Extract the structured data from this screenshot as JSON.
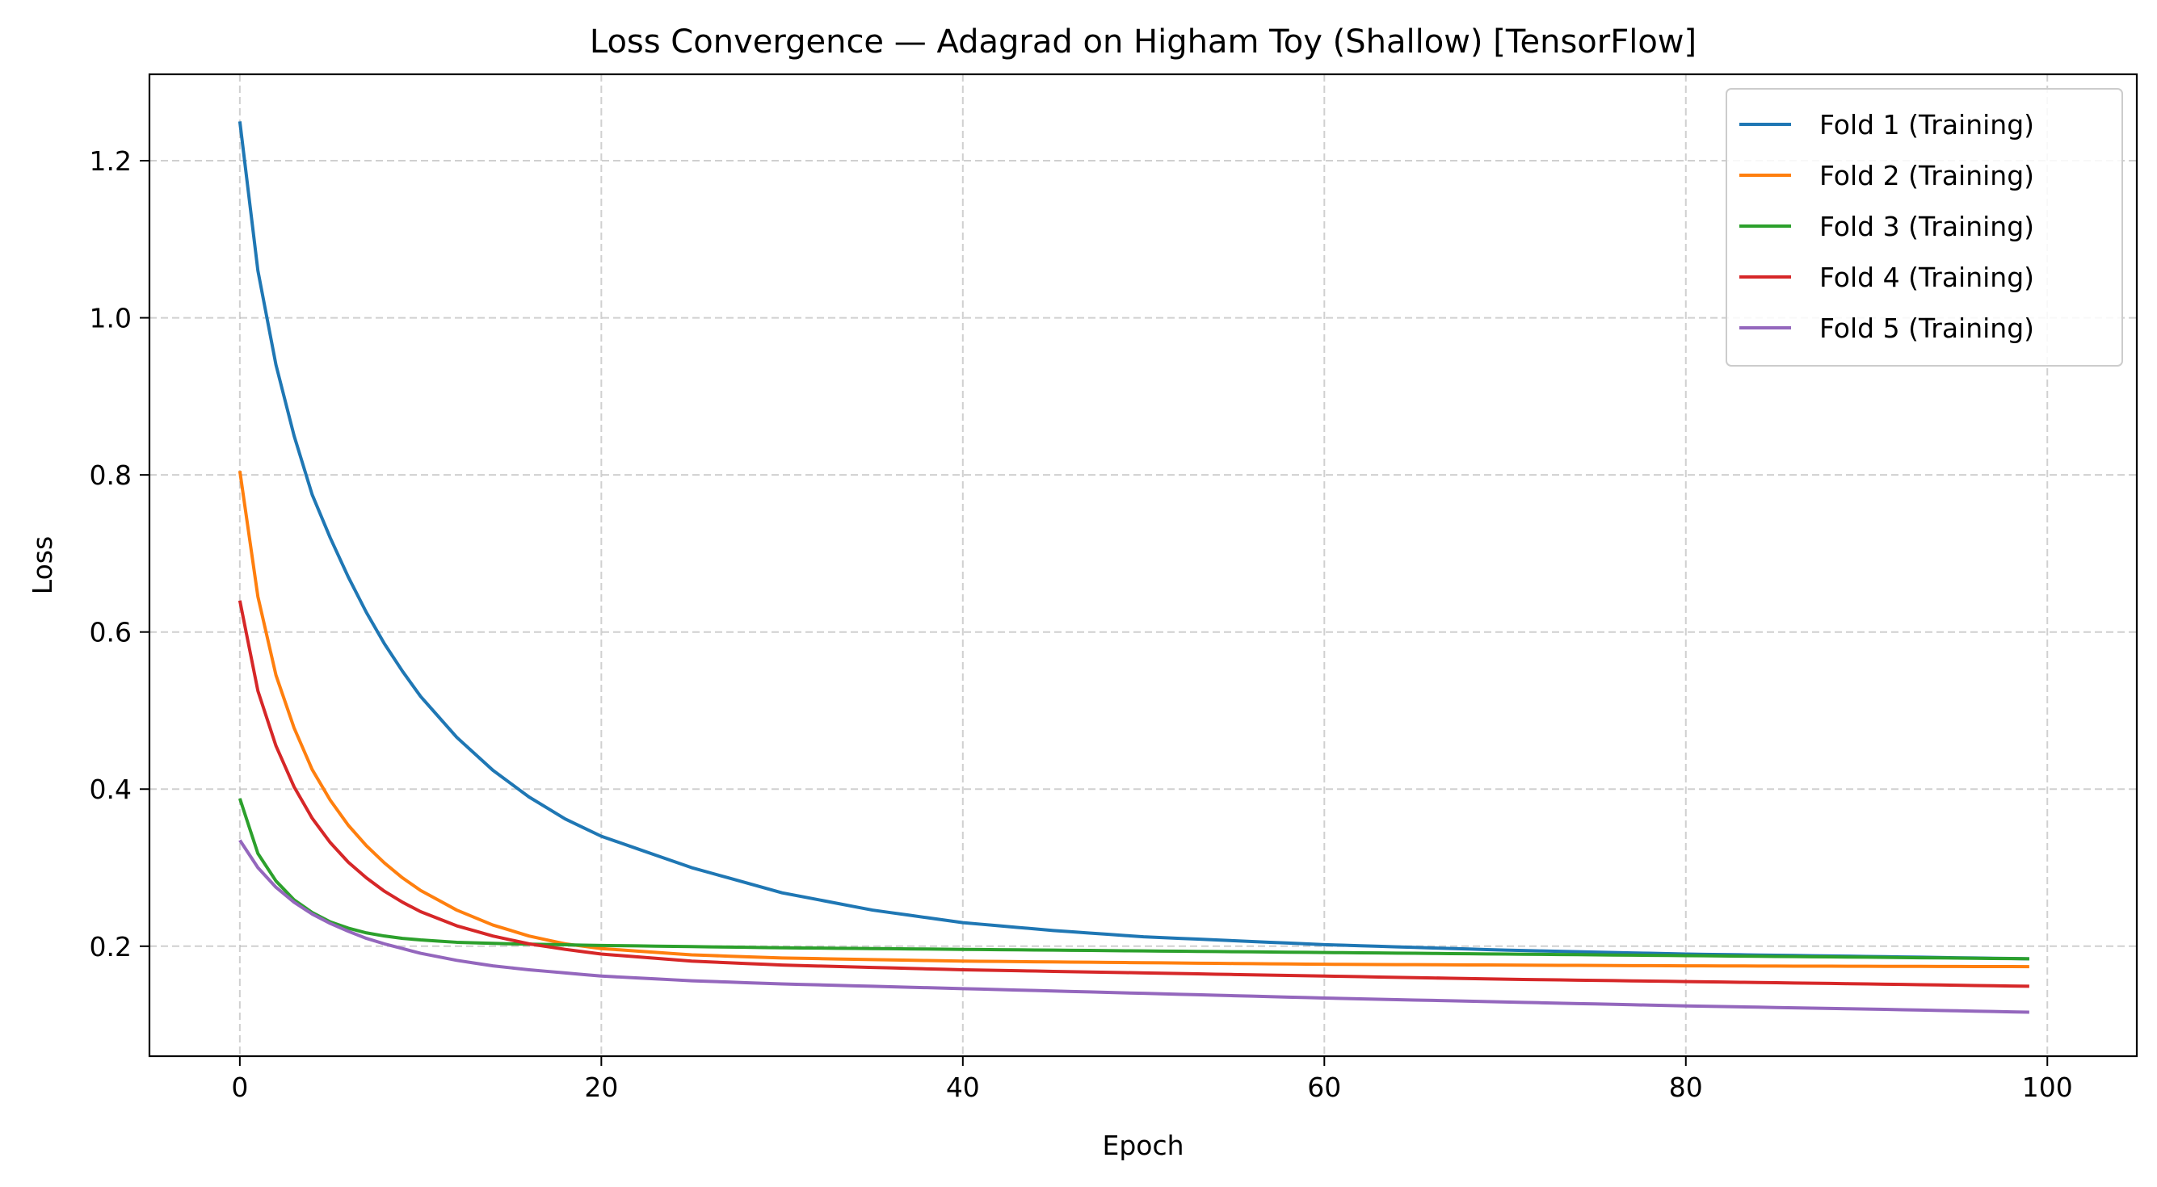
{
  "chart_data": {
    "type": "line",
    "title": "Loss Convergence — Adagrad on Higham Toy (Shallow) [TensorFlow]",
    "xlabel": "Epoch",
    "ylabel": "Loss",
    "xlim": [
      -5,
      104.95
    ],
    "ylim": [
      0.06,
      1.31
    ],
    "x_ticks": [
      0,
      20,
      40,
      60,
      80,
      100
    ],
    "y_ticks": [
      0.2,
      0.4,
      0.6,
      0.8,
      1.0,
      1.2
    ],
    "x_tick_labels": [
      "0",
      "20",
      "40",
      "60",
      "80",
      "100"
    ],
    "y_tick_labels": [
      "0.2",
      "0.4",
      "0.6",
      "0.8",
      "1.0",
      "1.2"
    ],
    "grid": true,
    "legend_position": "top-right",
    "x_range": [
      0,
      99
    ],
    "series": [
      {
        "name": "Fold 1 (Training)",
        "color": "#1f77b4",
        "points": [
          [
            0,
            1.25
          ],
          [
            1,
            1.06
          ],
          [
            2,
            0.94
          ],
          [
            3,
            0.85
          ],
          [
            4,
            0.775
          ],
          [
            5,
            0.72
          ],
          [
            6,
            0.67
          ],
          [
            7,
            0.625
          ],
          [
            8,
            0.585
          ],
          [
            9,
            0.55
          ],
          [
            10,
            0.518
          ],
          [
            12,
            0.466
          ],
          [
            14,
            0.424
          ],
          [
            16,
            0.39
          ],
          [
            18,
            0.362
          ],
          [
            20,
            0.34
          ],
          [
            25,
            0.3
          ],
          [
            30,
            0.268
          ],
          [
            35,
            0.246
          ],
          [
            40,
            0.23
          ],
          [
            45,
            0.22
          ],
          [
            50,
            0.212
          ],
          [
            60,
            0.202
          ],
          [
            70,
            0.195
          ],
          [
            80,
            0.19
          ],
          [
            90,
            0.187
          ],
          [
            99,
            0.184
          ]
        ]
      },
      {
        "name": "Fold 2 (Training)",
        "color": "#ff7f0e",
        "points": [
          [
            0,
            0.805
          ],
          [
            1,
            0.645
          ],
          [
            2,
            0.545
          ],
          [
            3,
            0.478
          ],
          [
            4,
            0.425
          ],
          [
            5,
            0.386
          ],
          [
            6,
            0.354
          ],
          [
            7,
            0.328
          ],
          [
            8,
            0.306
          ],
          [
            9,
            0.287
          ],
          [
            10,
            0.271
          ],
          [
            12,
            0.246
          ],
          [
            14,
            0.227
          ],
          [
            16,
            0.213
          ],
          [
            18,
            0.203
          ],
          [
            20,
            0.197
          ],
          [
            25,
            0.189
          ],
          [
            30,
            0.185
          ],
          [
            40,
            0.181
          ],
          [
            50,
            0.179
          ],
          [
            60,
            0.177
          ],
          [
            70,
            0.176
          ],
          [
            80,
            0.175
          ],
          [
            99,
            0.174
          ]
        ]
      },
      {
        "name": "Fold 3 (Training)",
        "color": "#2ca02c",
        "points": [
          [
            0,
            0.388
          ],
          [
            1,
            0.318
          ],
          [
            2,
            0.283
          ],
          [
            3,
            0.259
          ],
          [
            4,
            0.243
          ],
          [
            5,
            0.231
          ],
          [
            6,
            0.223
          ],
          [
            7,
            0.217
          ],
          [
            8,
            0.213
          ],
          [
            9,
            0.21
          ],
          [
            10,
            0.208
          ],
          [
            12,
            0.205
          ],
          [
            15,
            0.203
          ],
          [
            20,
            0.201
          ],
          [
            30,
            0.198
          ],
          [
            40,
            0.196
          ],
          [
            50,
            0.194
          ],
          [
            60,
            0.192
          ],
          [
            70,
            0.19
          ],
          [
            80,
            0.188
          ],
          [
            90,
            0.186
          ],
          [
            99,
            0.184
          ]
        ]
      },
      {
        "name": "Fold 4 (Training)",
        "color": "#d62728",
        "points": [
          [
            0,
            0.64
          ],
          [
            1,
            0.525
          ],
          [
            2,
            0.455
          ],
          [
            3,
            0.403
          ],
          [
            4,
            0.363
          ],
          [
            5,
            0.332
          ],
          [
            6,
            0.307
          ],
          [
            7,
            0.287
          ],
          [
            8,
            0.27
          ],
          [
            9,
            0.256
          ],
          [
            10,
            0.244
          ],
          [
            12,
            0.226
          ],
          [
            14,
            0.213
          ],
          [
            16,
            0.203
          ],
          [
            18,
            0.196
          ],
          [
            20,
            0.19
          ],
          [
            25,
            0.181
          ],
          [
            30,
            0.176
          ],
          [
            40,
            0.17
          ],
          [
            50,
            0.166
          ],
          [
            60,
            0.162
          ],
          [
            70,
            0.158
          ],
          [
            80,
            0.155
          ],
          [
            90,
            0.152
          ],
          [
            99,
            0.149
          ]
        ]
      },
      {
        "name": "Fold 5 (Training)",
        "color": "#9467bd",
        "points": [
          [
            0,
            0.335
          ],
          [
            1,
            0.3
          ],
          [
            2,
            0.275
          ],
          [
            3,
            0.256
          ],
          [
            4,
            0.241
          ],
          [
            5,
            0.229
          ],
          [
            6,
            0.219
          ],
          [
            7,
            0.21
          ],
          [
            8,
            0.203
          ],
          [
            9,
            0.197
          ],
          [
            10,
            0.191
          ],
          [
            12,
            0.182
          ],
          [
            14,
            0.175
          ],
          [
            16,
            0.17
          ],
          [
            18,
            0.166
          ],
          [
            20,
            0.162
          ],
          [
            25,
            0.156
          ],
          [
            30,
            0.152
          ],
          [
            40,
            0.146
          ],
          [
            50,
            0.14
          ],
          [
            60,
            0.134
          ],
          [
            70,
            0.129
          ],
          [
            80,
            0.124
          ],
          [
            90,
            0.12
          ],
          [
            99,
            0.116
          ]
        ]
      }
    ]
  }
}
